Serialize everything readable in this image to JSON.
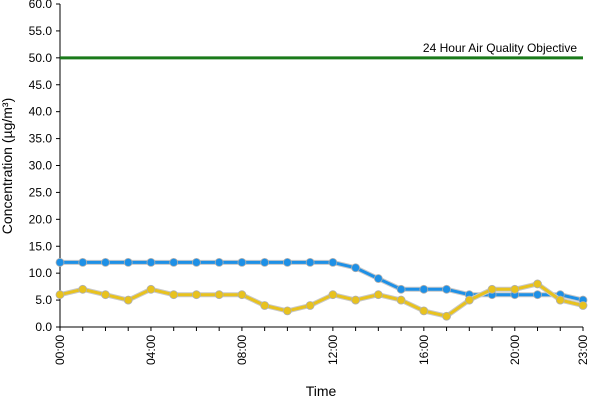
{
  "chart_data": {
    "type": "line",
    "xlabel": "Time",
    "ylabel": "Concentration (µg/m³)",
    "x": [
      "00:00",
      "01:00",
      "02:00",
      "03:00",
      "04:00",
      "05:00",
      "06:00",
      "07:00",
      "08:00",
      "09:00",
      "10:00",
      "11:00",
      "12:00",
      "13:00",
      "14:00",
      "15:00",
      "16:00",
      "17:00",
      "18:00",
      "19:00",
      "20:00",
      "21:00",
      "22:00",
      "23:00"
    ],
    "x_tick_labels": [
      "00:00",
      "04:00",
      "08:00",
      "12:00",
      "16:00",
      "20:00",
      "23:00"
    ],
    "y_tick_labels": [
      "0.0",
      "5.0",
      "10.0",
      "15.0",
      "20.0",
      "25.0",
      "30.0",
      "35.0",
      "40.0",
      "45.0",
      "50.0",
      "55.0",
      "60.0"
    ],
    "ylim": [
      0,
      60
    ],
    "grid": false,
    "objective": {
      "label": "24 Hour Air Quality Objective",
      "value": 50,
      "color": "#1a7a1a"
    },
    "series": [
      {
        "color": "#1e90e6",
        "values": [
          12,
          12,
          12,
          12,
          12,
          12,
          12,
          12,
          12,
          12,
          12,
          12,
          12,
          11,
          9,
          7,
          7,
          7,
          6,
          6,
          6,
          6,
          6,
          5
        ]
      },
      {
        "color": "#e8c21e",
        "values": [
          6,
          7,
          6,
          5,
          7,
          6,
          6,
          6,
          6,
          4,
          3,
          4,
          6,
          5,
          6,
          5,
          3,
          2,
          5,
          7,
          7,
          8,
          5,
          4
        ]
      }
    ]
  }
}
